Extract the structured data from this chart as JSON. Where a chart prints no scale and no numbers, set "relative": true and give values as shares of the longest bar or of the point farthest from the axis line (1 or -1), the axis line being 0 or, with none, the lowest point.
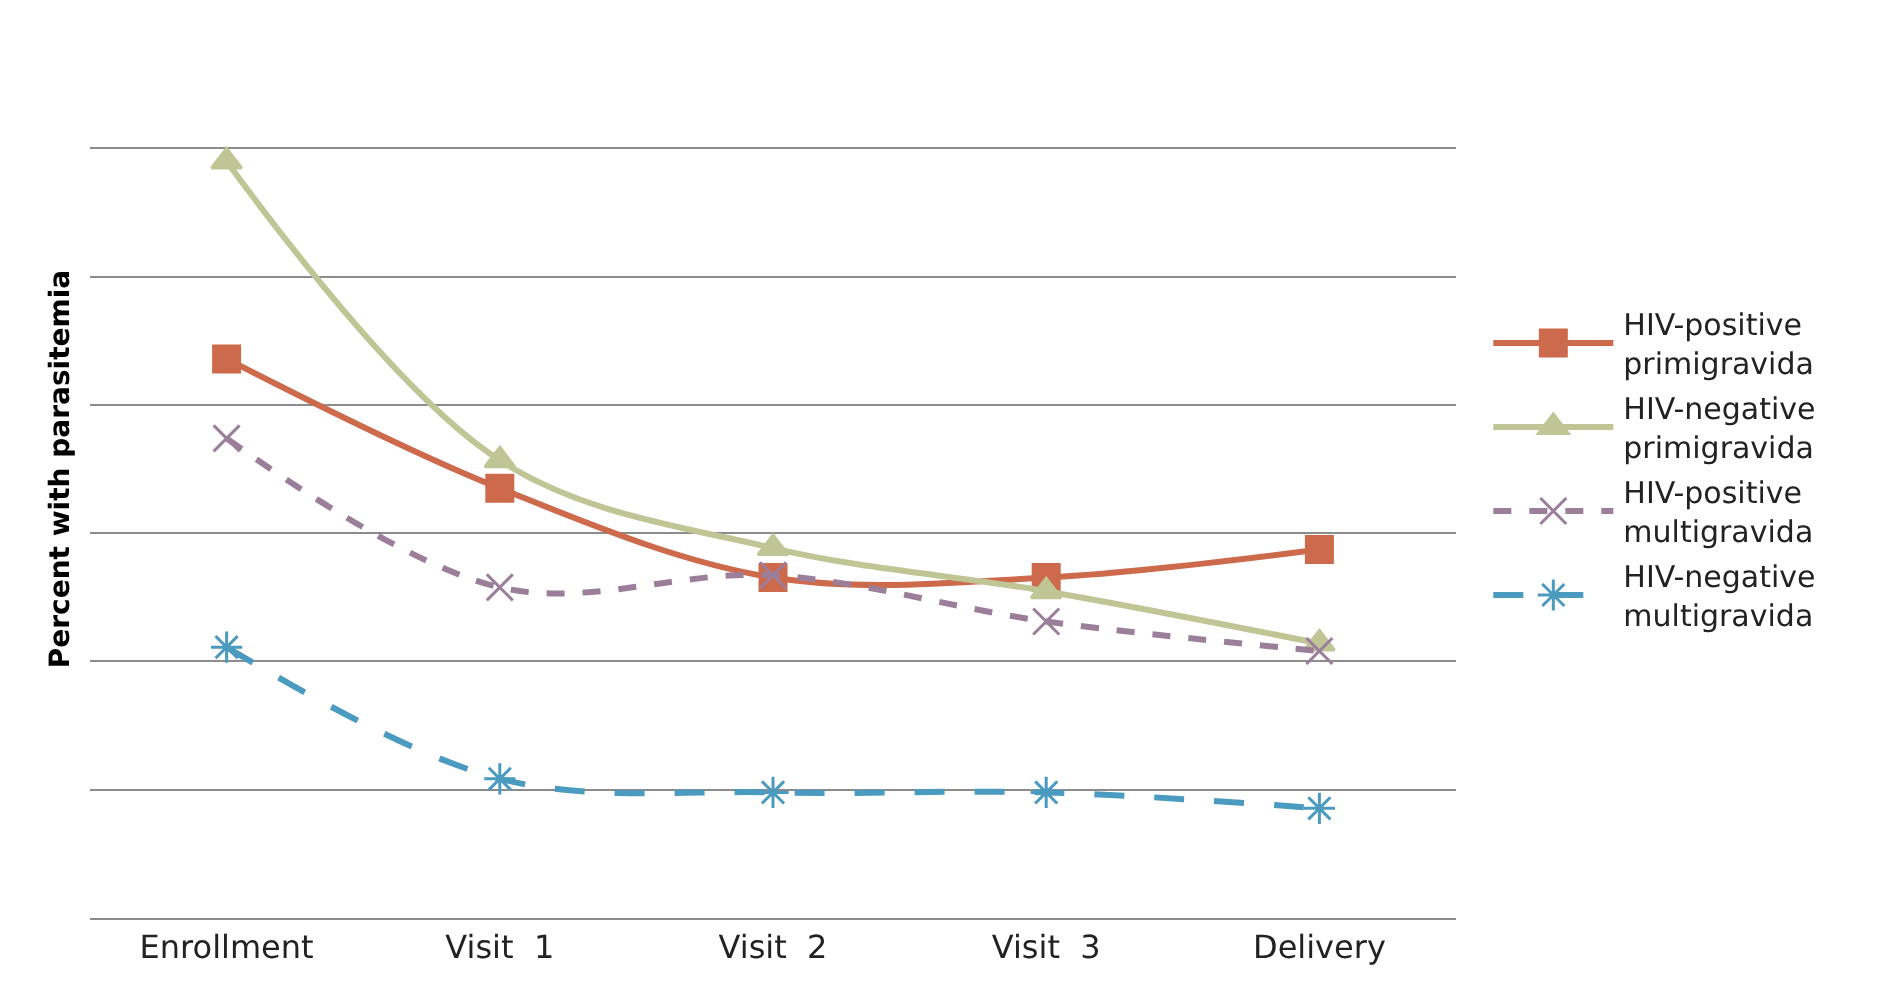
{
  "chart_data": {
    "type": "line",
    "ylabel": "Percent with parasitemia",
    "relative": true,
    "grid": "y",
    "legend": "right",
    "categories": [
      "Enrollment",
      "Visit  1",
      "Visit  2",
      "Visit  3",
      "Delivery"
    ],
    "series": [
      {
        "name": "HIV-positive primigravida",
        "color": "#cd6a4c",
        "marker": "square",
        "line_style": "solid",
        "values": [
          0.739,
          0.568,
          0.45,
          0.45,
          0.487
        ]
      },
      {
        "name": "HIV-negative primigravida",
        "color": "#bfc595",
        "marker": "triangle",
        "line_style": "solid",
        "values": [
          1,
          0.605,
          0.489,
          0.432,
          0.363
        ]
      },
      {
        "name": "HIV-positive multigravida",
        "color": "#9b7e9a",
        "marker": "cross",
        "line_style": "dashed",
        "values": [
          0.634,
          0.437,
          0.453,
          0.392,
          0.353
        ]
      },
      {
        "name": "HIV-negative multigravida",
        "color": "#4b9ac0",
        "marker": "cross",
        "line_style": "dashed",
        "values": [
          0.358,
          0.184,
          0.166,
          0.166,
          0.145
        ]
      }
    ]
  }
}
